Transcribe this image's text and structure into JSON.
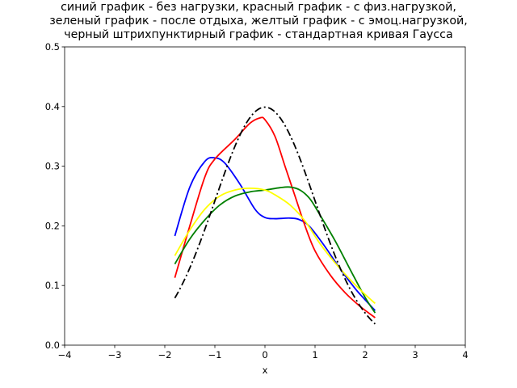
{
  "chart_data": {
    "type": "line",
    "title_lines": [
      "синий график - без нагрузки, красный график - с физ.нагрузкой,",
      "зеленый график - после отдыха, желтый график - с эмоц.нагрузкой,",
      "черный штрихпунктирный график - стандартная кривая Гаусса"
    ],
    "xlabel": "x",
    "ylabel": "",
    "xlim": [
      -4,
      4
    ],
    "ylim": [
      0,
      0.5
    ],
    "xticks": [
      -4,
      -3,
      -2,
      -1,
      0,
      1,
      2,
      3,
      4
    ],
    "xtick_labels": [
      "−4",
      "−3",
      "−2",
      "−1",
      "0",
      "1",
      "2",
      "3",
      "4"
    ],
    "yticks": [
      0.0,
      0.1,
      0.2,
      0.3,
      0.4,
      0.5
    ],
    "ytick_labels": [
      "0.0",
      "0.1",
      "0.2",
      "0.3",
      "0.4",
      "0.5"
    ],
    "grid": false,
    "legend": "none",
    "series": [
      {
        "color": "#0000ff",
        "dash": "solid",
        "points": [
          [
            -1.8,
            0.183
          ],
          [
            -1.5,
            0.265
          ],
          [
            -1.2,
            0.308
          ],
          [
            -1.0,
            0.314
          ],
          [
            -0.8,
            0.305
          ],
          [
            -0.5,
            0.27
          ],
          [
            -0.2,
            0.228
          ],
          [
            0.0,
            0.214
          ],
          [
            0.2,
            0.212
          ],
          [
            0.5,
            0.213
          ],
          [
            0.7,
            0.21
          ],
          [
            0.9,
            0.198
          ],
          [
            1.2,
            0.165
          ],
          [
            1.5,
            0.128
          ],
          [
            1.8,
            0.095
          ],
          [
            2.0,
            0.076
          ],
          [
            2.2,
            0.058
          ]
        ]
      },
      {
        "color": "#ff0000",
        "dash": "solid",
        "points": [
          [
            -1.8,
            0.113
          ],
          [
            -1.5,
            0.2
          ],
          [
            -1.2,
            0.282
          ],
          [
            -1.0,
            0.312
          ],
          [
            -0.6,
            0.345
          ],
          [
            -0.3,
            0.372
          ],
          [
            -0.1,
            0.381
          ],
          [
            0.0,
            0.378
          ],
          [
            0.2,
            0.35
          ],
          [
            0.4,
            0.3
          ],
          [
            0.6,
            0.25
          ],
          [
            0.8,
            0.2
          ],
          [
            1.0,
            0.158
          ],
          [
            1.3,
            0.118
          ],
          [
            1.6,
            0.088
          ],
          [
            1.9,
            0.065
          ],
          [
            2.2,
            0.046
          ]
        ]
      },
      {
        "color": "#008000",
        "dash": "solid",
        "points": [
          [
            -1.8,
            0.136
          ],
          [
            -1.5,
            0.178
          ],
          [
            -1.2,
            0.21
          ],
          [
            -0.9,
            0.235
          ],
          [
            -0.6,
            0.25
          ],
          [
            -0.3,
            0.257
          ],
          [
            0.0,
            0.26
          ],
          [
            0.3,
            0.264
          ],
          [
            0.5,
            0.265
          ],
          [
            0.7,
            0.26
          ],
          [
            0.9,
            0.245
          ],
          [
            1.1,
            0.218
          ],
          [
            1.4,
            0.175
          ],
          [
            1.7,
            0.127
          ],
          [
            2.0,
            0.08
          ],
          [
            2.2,
            0.054
          ]
        ]
      },
      {
        "color": "#ffff00",
        "dash": "solid",
        "points": [
          [
            -1.8,
            0.15
          ],
          [
            -1.5,
            0.193
          ],
          [
            -1.2,
            0.228
          ],
          [
            -0.9,
            0.25
          ],
          [
            -0.6,
            0.26
          ],
          [
            -0.3,
            0.263
          ],
          [
            0.0,
            0.26
          ],
          [
            0.2,
            0.252
          ],
          [
            0.5,
            0.235
          ],
          [
            0.8,
            0.208
          ],
          [
            1.1,
            0.17
          ],
          [
            1.4,
            0.138
          ],
          [
            1.7,
            0.11
          ],
          [
            2.0,
            0.085
          ],
          [
            2.2,
            0.07
          ]
        ]
      },
      {
        "color": "#000000",
        "dash": "dashdot",
        "gaussian": {
          "mu": 0,
          "sigma": 1,
          "xmin": -1.8,
          "xmax": 2.2
        }
      }
    ]
  }
}
